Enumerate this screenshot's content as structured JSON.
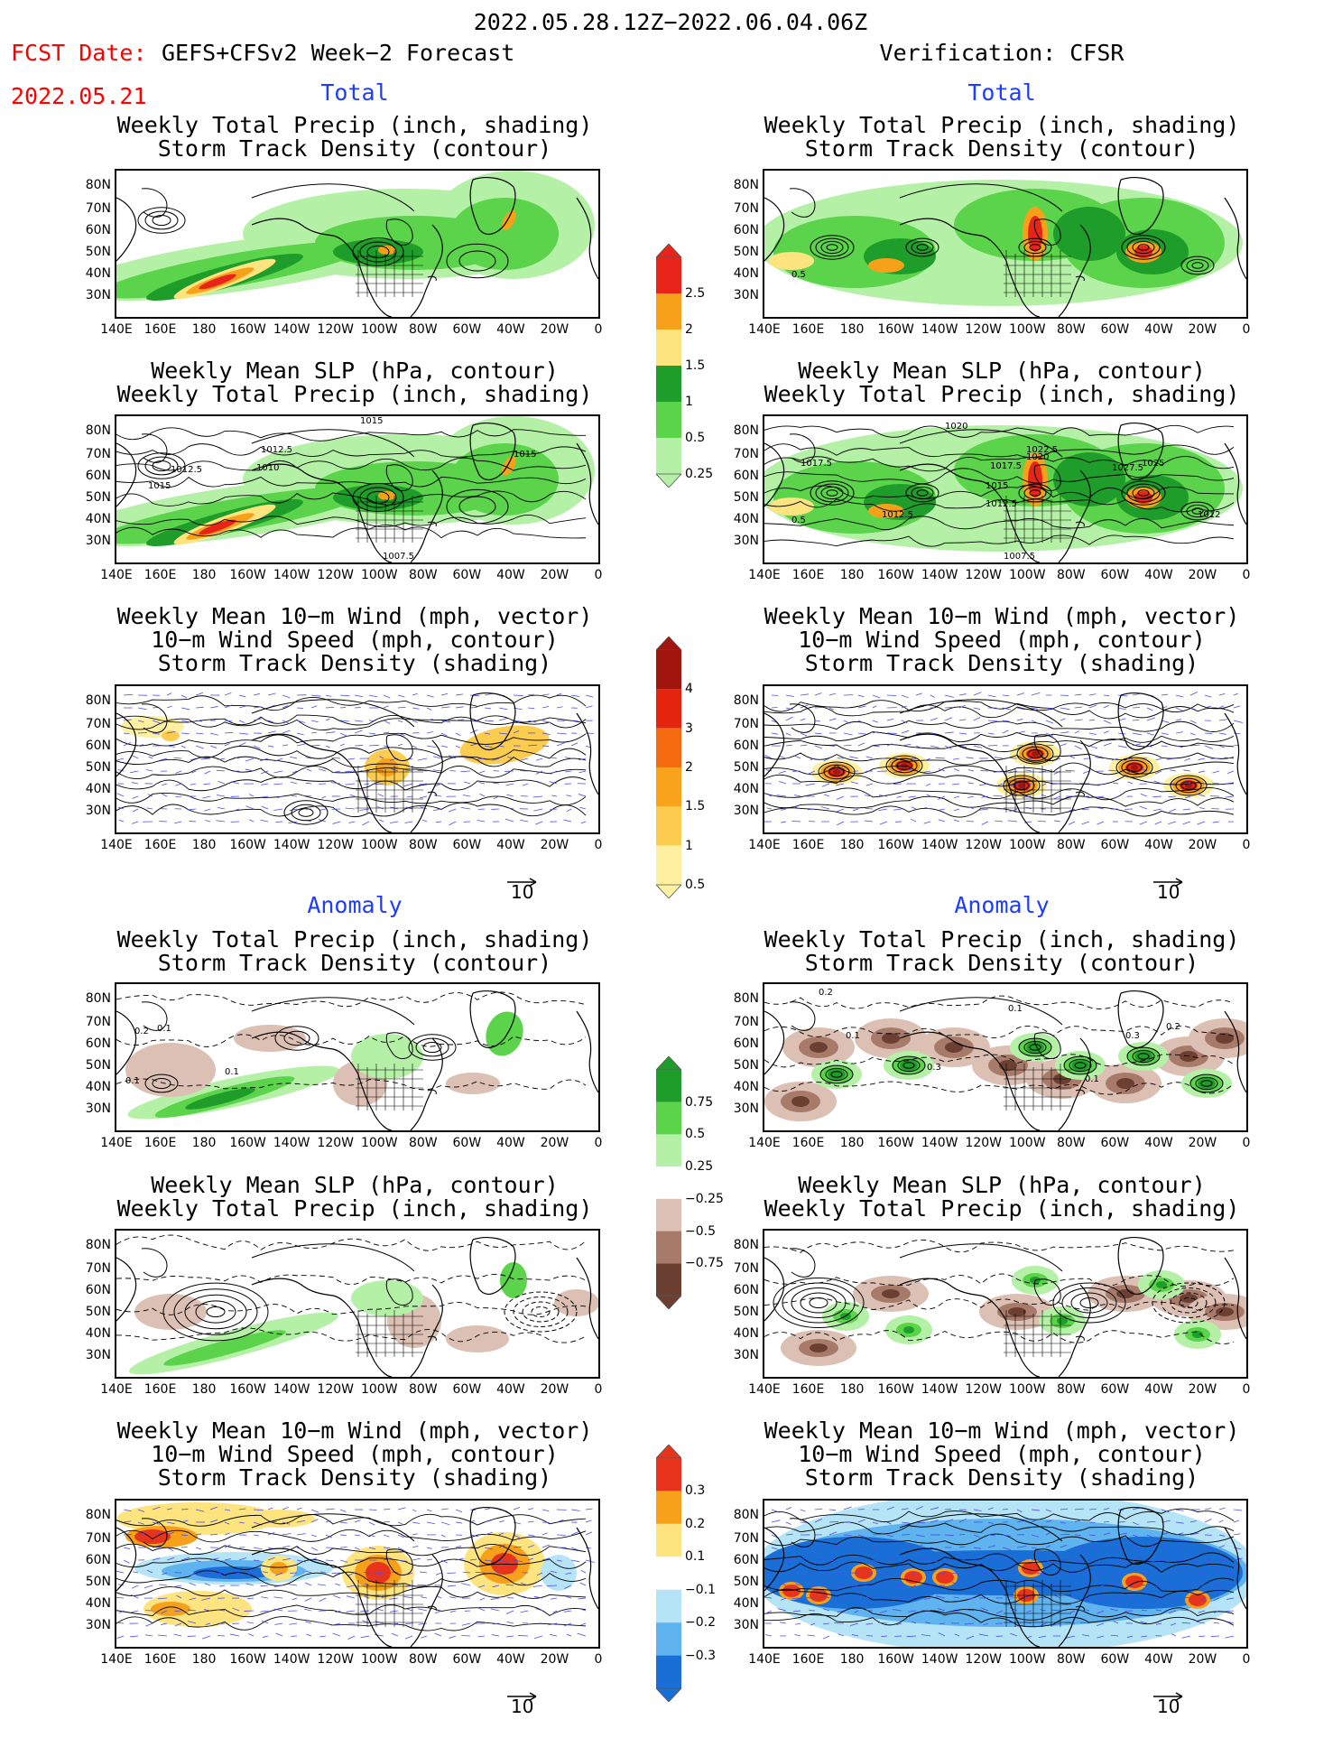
{
  "header": {
    "title": "2022.05.28.12Z−2022.06.04.06Z",
    "fcst_label": "FCST Date:",
    "fcst_model": "GEFS+CFSv2 Week−2 Forecast",
    "fcst_date": "2022.05.21",
    "verification": "Verification: CFSR"
  },
  "sections": {
    "total": "Total",
    "anomaly": "Anomaly"
  },
  "panel_titles": {
    "precip_storm": [
      "Weekly Total Precip (inch, shading)",
      "Storm Track Density (contour)"
    ],
    "slp_precip": [
      "Weekly Mean SLP (hPa, contour)",
      "Weekly Total Precip (inch, shading)"
    ],
    "wind_storm": [
      "Weekly Mean 10−m Wind (mph, vector)",
      "10−m Wind Speed (mph, contour)",
      "Storm Track Density (shading)"
    ]
  },
  "axes": {
    "lat_labels": [
      "80N",
      "70N",
      "60N",
      "50N",
      "40N",
      "30N"
    ],
    "lon_labels": [
      "140E",
      "160E",
      "180",
      "160W",
      "140W",
      "120W",
      "100W",
      "80W",
      "60W",
      "40W",
      "20W",
      "0"
    ]
  },
  "vector_ref": "10",
  "colorbars": {
    "precip_total": {
      "labels": [
        "2.5",
        "2",
        "1.5",
        "1",
        "0.5",
        "0.25"
      ],
      "colors": [
        "#e8241a",
        "#f7a11a",
        "#fde47f",
        "#1f9d2a",
        "#5bd34a",
        "#b4f0a6"
      ]
    },
    "storm_total": {
      "labels": [
        "4",
        "3",
        "2",
        "1.5",
        "1",
        "0.5"
      ],
      "colors": [
        "#a0150d",
        "#e3240f",
        "#f56a0f",
        "#f9a21c",
        "#fbcc4d",
        "#fdf0a0"
      ]
    },
    "precip_anom": {
      "labels": [
        "0.75",
        "0.5",
        "0.25",
        "−0.25",
        "−0.5",
        "−0.75"
      ],
      "colors": [
        "#1f9d2a",
        "#5bd34a",
        "#b4f0a6",
        "#dcc0b4",
        "#a87a6a",
        "#6b4032"
      ]
    },
    "storm_anom": {
      "labels": [
        "0.3",
        "0.2",
        "0.1",
        "−0.1",
        "−0.2",
        "−0.3"
      ],
      "colors": [
        "#e8341c",
        "#f7a11a",
        "#fde47f",
        "#b5e4f7",
        "#5fb3ee",
        "#1a6fd6"
      ]
    },
    "storm_anom_extra_colors": {
      "neutral": "#ffffff"
    }
  },
  "contour_labels": {
    "fcst_slp_total": [
      "1015",
      "1012.5",
      "1012.5",
      "1010",
      "1015",
      "1015",
      "1007.5"
    ],
    "obs_slp_total": [
      "1020",
      "1022.5",
      "1020",
      "1017.5",
      "1017.5",
      "1027.5",
      "1025",
      "1015",
      "1012.5",
      "1012.5",
      "1012",
      "1007.5"
    ],
    "obs_precip_total": [
      "0.5"
    ],
    "fcst_precip_anom": [
      "0.2",
      "0.1",
      "0.1",
      "0.1"
    ],
    "obs_precip_anom": [
      "0.2",
      "0.1",
      "0.1",
      "0.3",
      "0.1",
      "0.3",
      "0.2"
    ]
  }
}
